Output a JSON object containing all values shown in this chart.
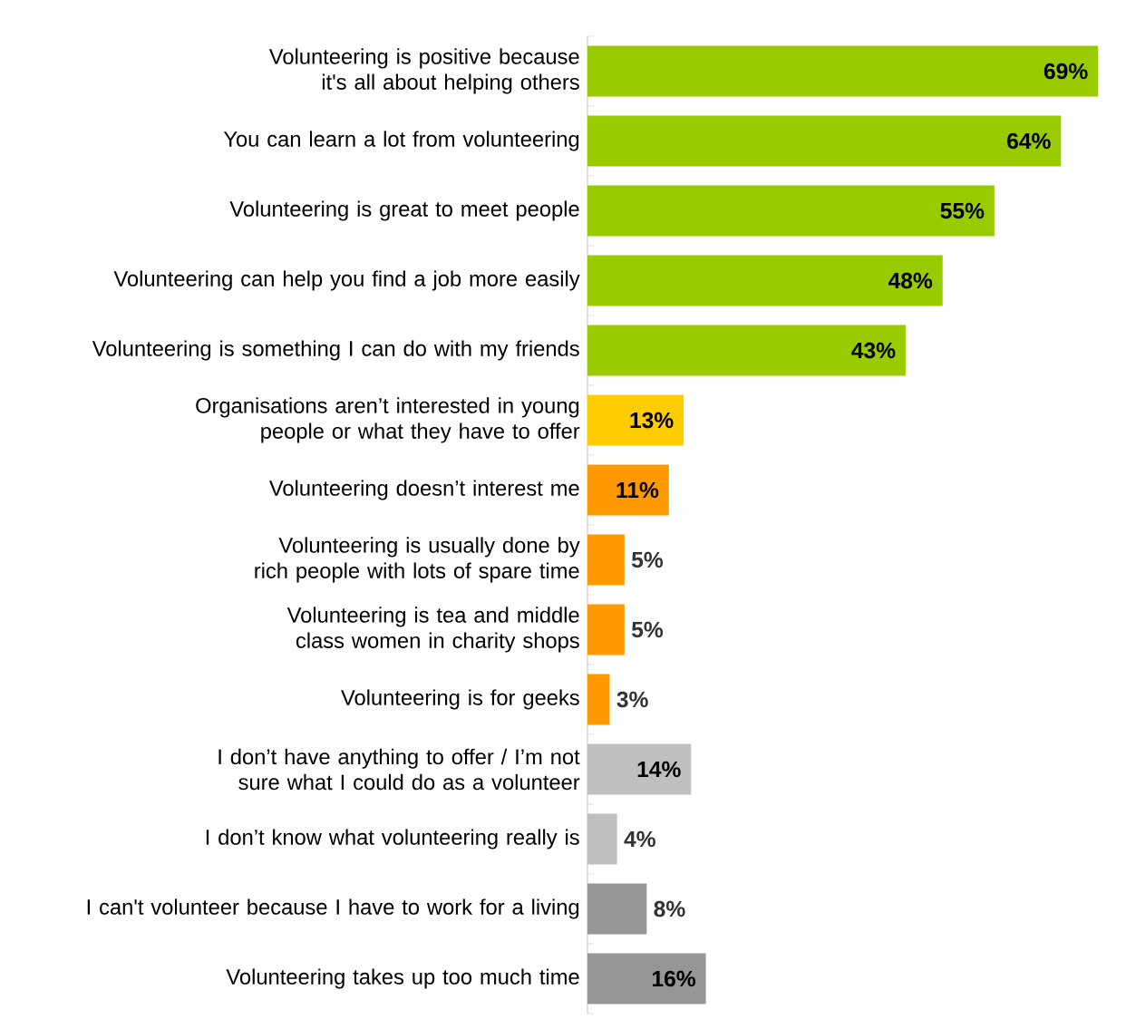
{
  "chart_data": {
    "type": "bar",
    "orientation": "horizontal",
    "categories": [
      "Volunteering is positive because it's all about helping others",
      "You can learn a lot from volunteering",
      "Volunteering is great to meet people",
      "Volunteering can help you find a job more easily",
      "Volunteering is something I can do with my friends",
      "Organisations aren’t interested in young people or what they have to offer",
      "Volunteering doesn’t interest me",
      "Volunteering is usually done by rich people with lots of spare time",
      "Volunteering is tea and middle class women in charity shops",
      "Volunteering is for geeks",
      "I don’t have anything to offer / I’m not sure what I could do as a volunteer",
      "I don’t know what volunteering really is",
      "I can't volunteer because I have to work for a living",
      "Volunteering takes up too much time"
    ],
    "values": [
      69,
      64,
      55,
      48,
      43,
      13,
      11,
      5,
      5,
      3,
      14,
      4,
      8,
      16
    ],
    "value_labels": [
      "69%",
      "64%",
      "55%",
      "48%",
      "43%",
      "13%",
      "11%",
      "5%",
      "5%",
      "3%",
      "14%",
      "4%",
      "8%",
      "16%"
    ],
    "colors": [
      "#99cc00",
      "#99cc00",
      "#99cc00",
      "#99cc00",
      "#99cc00",
      "#ffcc00",
      "#ff9900",
      "#ff9900",
      "#ff9900",
      "#ff9900",
      "#c0c0c0",
      "#c0c0c0",
      "#969696",
      "#969696"
    ]
  }
}
